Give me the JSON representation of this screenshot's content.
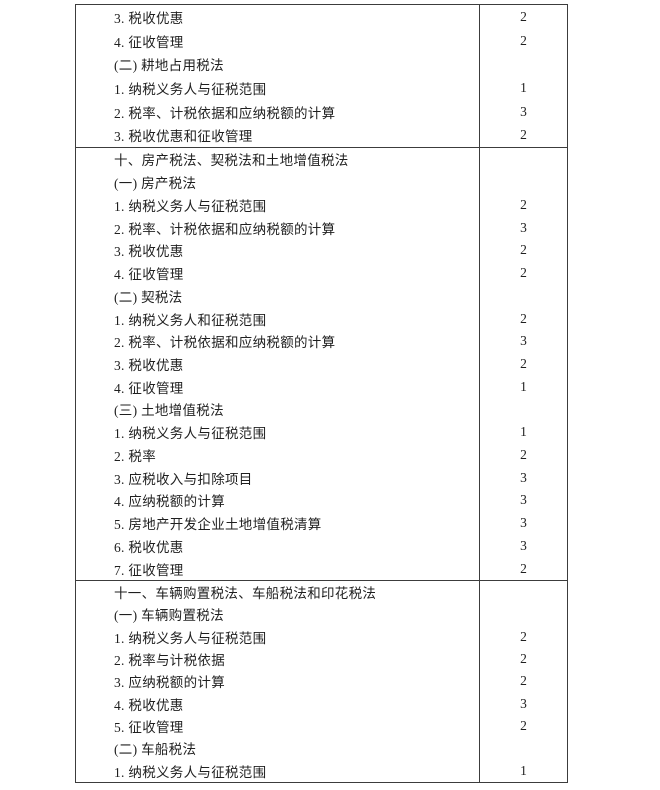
{
  "document": {
    "type": "syllabus-table-page",
    "background_color": "#ffffff",
    "text_color": "#1f1f1f",
    "line_color": "#3c3c3c"
  },
  "table": {
    "columns": [
      "topic",
      "score"
    ],
    "sections": [
      {
        "rows": [
          {
            "label": "3. 税收优惠",
            "score": "2"
          },
          {
            "label": "4. 征收管理",
            "score": "2"
          },
          {
            "label": "(二) 耕地占用税法",
            "score": ""
          },
          {
            "label": "1. 纳税义务人与征税范围",
            "score": "1"
          },
          {
            "label": "2. 税率、计税依据和应纳税额的计算",
            "score": "3"
          },
          {
            "label": "3. 税收优惠和征收管理",
            "score": "2"
          }
        ]
      },
      {
        "rows": [
          {
            "label": "十、房产税法、契税法和土地增值税法",
            "score": ""
          },
          {
            "label": "(一) 房产税法",
            "score": ""
          },
          {
            "label": "1. 纳税义务人与征税范围",
            "score": "2"
          },
          {
            "label": "2. 税率、计税依据和应纳税额的计算",
            "score": "3"
          },
          {
            "label": "3. 税收优惠",
            "score": "2"
          },
          {
            "label": "4. 征收管理",
            "score": "2"
          },
          {
            "label": "(二) 契税法",
            "score": ""
          },
          {
            "label": "1. 纳税义务人和征税范围",
            "score": "2"
          },
          {
            "label": "2. 税率、计税依据和应纳税额的计算",
            "score": "3"
          },
          {
            "label": "3. 税收优惠",
            "score": "2"
          },
          {
            "label": "4. 征收管理",
            "score": "1"
          },
          {
            "label": "(三) 土地增值税法",
            "score": ""
          },
          {
            "label": "1. 纳税义务人与征税范围",
            "score": "1"
          },
          {
            "label": "2. 税率",
            "score": "2"
          },
          {
            "label": "3. 应税收入与扣除项目",
            "score": "3"
          },
          {
            "label": "4. 应纳税额的计算",
            "score": "3"
          },
          {
            "label": "5. 房地产开发企业土地增值税清算",
            "score": "3"
          },
          {
            "label": "6. 税收优惠",
            "score": "3"
          },
          {
            "label": "7. 征收管理",
            "score": "2"
          }
        ]
      },
      {
        "rows": [
          {
            "label": "十一、车辆购置税法、车船税法和印花税法",
            "score": ""
          },
          {
            "label": "(一) 车辆购置税法",
            "score": ""
          },
          {
            "label": "1. 纳税义务人与征税范围",
            "score": "2"
          },
          {
            "label": "2. 税率与计税依据",
            "score": "2"
          },
          {
            "label": "3. 应纳税额的计算",
            "score": "2"
          },
          {
            "label": "4. 税收优惠",
            "score": "3"
          },
          {
            "label": "5. 征收管理",
            "score": "2"
          },
          {
            "label": "(二) 车船税法",
            "score": ""
          },
          {
            "label": "1. 纳税义务人与征税范围",
            "score": "1"
          }
        ]
      }
    ]
  }
}
